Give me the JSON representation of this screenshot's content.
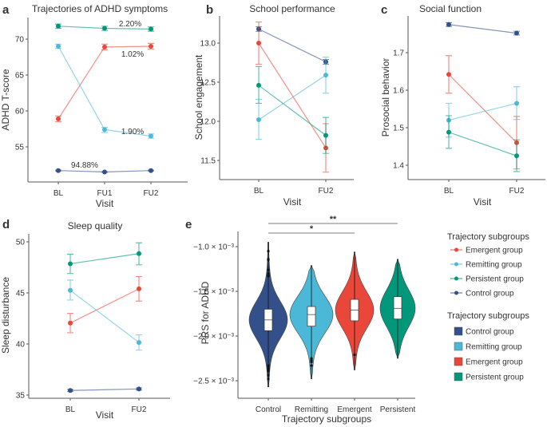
{
  "colors": {
    "emergent": "#e8473a",
    "remitting": "#4cb8d8",
    "persistent": "#00977a",
    "control": "#33508a"
  },
  "chart_data": [
    {
      "panel_label": "a",
      "type": "line",
      "title": "Trajectories of ADHD symptoms",
      "xlabel": "Visit",
      "ylabel": "ADHD T-score",
      "categories": [
        "BL",
        "FU1",
        "FU2"
      ],
      "yticks": [
        "55",
        "60",
        "65",
        "70"
      ],
      "ytick_values": [
        55,
        60,
        65,
        70
      ],
      "ylim": [
        50,
        72.5
      ],
      "series": [
        {
          "name": "Persistent group",
          "color": "persistent",
          "values": [
            71.8,
            71.5,
            71.4
          ],
          "err_low": [
            71.5,
            71.2,
            71.1
          ],
          "err_high": [
            72.1,
            71.8,
            71.7
          ]
        },
        {
          "name": "Emergent group",
          "color": "emergent",
          "values": [
            58.9,
            68.9,
            69.0
          ],
          "err_low": [
            58.5,
            68.5,
            68.6
          ],
          "err_high": [
            59.3,
            69.3,
            69.4
          ]
        },
        {
          "name": "Remitting group",
          "color": "remitting",
          "values": [
            69.0,
            57.4,
            56.5
          ],
          "err_low": [
            68.7,
            57.0,
            56.2
          ],
          "err_high": [
            69.3,
            57.7,
            56.8
          ]
        },
        {
          "name": "Control group",
          "color": "control",
          "values": [
            51.7,
            51.5,
            51.7
          ],
          "err_low": [
            51.65,
            51.45,
            51.65
          ],
          "err_high": [
            51.75,
            51.55,
            51.75
          ]
        }
      ],
      "annotations": [
        "2.20%",
        "1.02%",
        "1.90%",
        "94.88%"
      ]
    },
    {
      "panel_label": "b",
      "type": "line",
      "title": "School performance",
      "xlabel": "Visit",
      "ylabel": "School engagement",
      "categories": [
        "BL",
        "FU2"
      ],
      "yticks": [
        "11.5",
        "12.0",
        "12.5",
        "13.0"
      ],
      "ytick_values": [
        11.5,
        12.0,
        12.5,
        13.0
      ],
      "ylim": [
        11.3,
        13.35
      ],
      "series": [
        {
          "name": "Control group",
          "color": "control",
          "values": [
            13.18,
            12.76
          ],
          "err_low": [
            13.15,
            12.73
          ],
          "err_high": [
            13.21,
            12.79
          ]
        },
        {
          "name": "Emergent group",
          "color": "emergent",
          "values": [
            13.0,
            11.66
          ],
          "err_low": [
            12.73,
            11.35
          ],
          "err_high": [
            13.27,
            11.97
          ]
        },
        {
          "name": "Persistent group",
          "color": "persistent",
          "values": [
            12.46,
            11.82
          ],
          "err_low": [
            12.23,
            11.59
          ],
          "err_high": [
            12.7,
            12.05
          ]
        },
        {
          "name": "Remitting group",
          "color": "remitting",
          "values": [
            12.02,
            12.59
          ],
          "err_low": [
            11.77,
            12.36
          ],
          "err_high": [
            12.28,
            12.82
          ]
        }
      ]
    },
    {
      "panel_label": "c",
      "type": "line",
      "title": "Social function",
      "xlabel": "Visit",
      "ylabel": "Prosocial behavior",
      "categories": [
        "BL",
        "FU2"
      ],
      "yticks": [
        "1.4",
        "1.5",
        "1.6",
        "1.7"
      ],
      "ytick_values": [
        1.4,
        1.5,
        1.6,
        1.7
      ],
      "ylim": [
        1.36,
        1.8
      ],
      "series": [
        {
          "name": "Control group",
          "color": "control",
          "values": [
            1.775,
            1.752
          ],
          "err_low": [
            1.77,
            1.747
          ],
          "err_high": [
            1.78,
            1.757
          ]
        },
        {
          "name": "Emergent group",
          "color": "emergent",
          "values": [
            1.642,
            1.46
          ],
          "err_low": [
            1.592,
            1.39
          ],
          "err_high": [
            1.692,
            1.53
          ]
        },
        {
          "name": "Remitting group",
          "color": "remitting",
          "values": [
            1.52,
            1.565
          ],
          "err_low": [
            1.475,
            1.522
          ],
          "err_high": [
            1.565,
            1.609
          ]
        },
        {
          "name": "Persistent group",
          "color": "persistent",
          "values": [
            1.488,
            1.425
          ],
          "err_low": [
            1.445,
            1.383
          ],
          "err_high": [
            1.532,
            1.468
          ]
        }
      ]
    },
    {
      "panel_label": "d",
      "type": "line",
      "title": "Sleep quality",
      "xlabel": "Visit",
      "ylabel": "Sleep disturbance",
      "categories": [
        "BL",
        "FU2"
      ],
      "yticks": [
        "35",
        "40",
        "45",
        "50"
      ],
      "ytick_values": [
        35,
        40,
        45,
        50
      ],
      "ylim": [
        34.7,
        50.6
      ],
      "series": [
        {
          "name": "Persistent group",
          "color": "persistent",
          "values": [
            47.85,
            48.85
          ],
          "err_low": [
            46.9,
            47.75
          ],
          "err_high": [
            48.8,
            49.9
          ]
        },
        {
          "name": "Emergent group",
          "color": "emergent",
          "values": [
            42.05,
            45.4
          ],
          "err_low": [
            41.1,
            44.2
          ],
          "err_high": [
            43.0,
            46.6
          ]
        },
        {
          "name": "Remitting group",
          "color": "remitting",
          "values": [
            45.25,
            40.15
          ],
          "err_low": [
            44.3,
            39.4
          ],
          "err_high": [
            46.25,
            40.9
          ]
        },
        {
          "name": "Control group",
          "color": "control",
          "values": [
            35.45,
            35.6
          ],
          "err_low": [
            35.35,
            35.5
          ],
          "err_high": [
            35.55,
            35.7
          ]
        }
      ]
    },
    {
      "panel_label": "e",
      "type": "violin",
      "xlabel": "Trajectory subgroups",
      "ylabel": "PRS for ADHD",
      "categories": [
        "Control",
        "Remitting",
        "Emergent",
        "Persistent"
      ],
      "yticks": [
        "−2.5 × 10⁻³",
        "−2.0 × 10⁻³",
        "−1.5 × 10⁻³",
        "−1.0 × 10⁻³"
      ],
      "ytick_values": [
        -0.0025,
        -0.002,
        -0.0015,
        -0.001
      ],
      "ylim": [
        -0.0027,
        -0.00075
      ],
      "groups": [
        {
          "name": "Control",
          "color": "control",
          "min": -0.00257,
          "max": -0.00095,
          "q1": -0.00194,
          "median": -0.00182,
          "q3": -0.0017,
          "outliers": [
            -0.00105,
            -0.00114,
            -0.00115,
            -0.00126,
            -0.0013,
            -0.00132,
            -0.00133,
            -0.00233,
            -0.00235,
            -0.00237,
            -0.00239,
            -0.00244,
            -0.00248
          ]
        },
        {
          "name": "Remitting",
          "color": "remitting",
          "min": -0.00248,
          "max": -0.00121,
          "q1": -0.00189,
          "median": -0.00176,
          "q3": -0.00167,
          "outliers": [
            -0.00225,
            -0.00227,
            -0.00229,
            -0.00233
          ]
        },
        {
          "name": "Emergent",
          "color": "emergent",
          "min": -0.00238,
          "max": -0.00106,
          "q1": -0.00183,
          "median": -0.00171,
          "q3": -0.00159,
          "outliers": [
            -0.00221
          ]
        },
        {
          "name": "Persistent",
          "color": "persistent",
          "min": -0.00225,
          "max": -0.00114,
          "q1": -0.00181,
          "median": -0.00169,
          "q3": -0.00156,
          "outliers": []
        }
      ],
      "significance": [
        {
          "from": "Control",
          "to": "Persistent",
          "label": "**"
        },
        {
          "from": "Control",
          "to": "Emergent",
          "label": "*"
        }
      ]
    }
  ],
  "legend_lines": {
    "title": "Trajectory subgroups",
    "items": [
      {
        "label": "Emergent group",
        "color": "emergent"
      },
      {
        "label": "Remitting group",
        "color": "remitting"
      },
      {
        "label": "Persistent group",
        "color": "persistent"
      },
      {
        "label": "Control group",
        "color": "control"
      }
    ]
  },
  "legend_boxes": {
    "title": "Trajectory subgroups",
    "items": [
      {
        "label": "Control group",
        "color": "control"
      },
      {
        "label": "Remitting group",
        "color": "remitting"
      },
      {
        "label": "Emergent group",
        "color": "emergent"
      },
      {
        "label": "Persistent group",
        "color": "persistent"
      }
    ]
  }
}
